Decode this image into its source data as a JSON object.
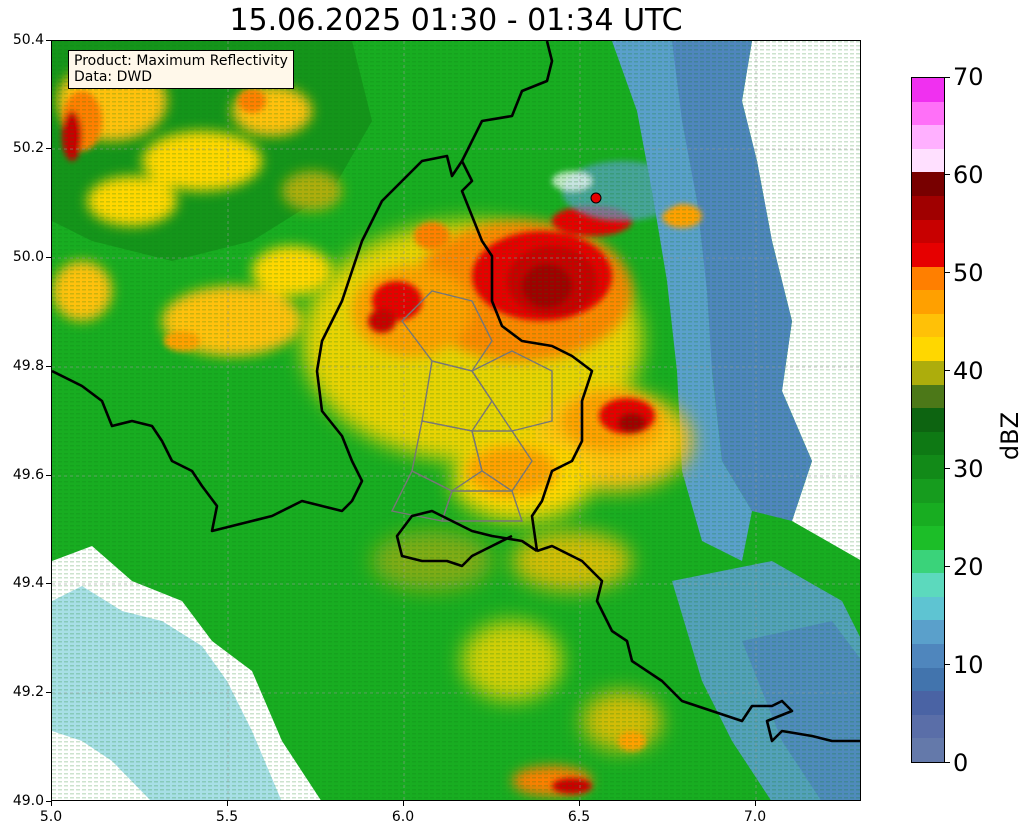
{
  "title": "15.06.2025 01:30 - 01:34 UTC",
  "info_box": {
    "product_line": "Product: Maximum Reflectivity",
    "data_line": "Data: DWD"
  },
  "axes": {
    "x_ticks": [
      "5.0",
      "5.5",
      "6.0",
      "6.5",
      "7.0"
    ],
    "y_ticks": [
      "50.4",
      "50.2",
      "50.0",
      "49.8",
      "49.6",
      "49.4",
      "49.2",
      "49.0"
    ],
    "x_range": [
      5.0,
      7.3
    ],
    "y_range": [
      49.0,
      50.4
    ],
    "grid": true
  },
  "colorbar": {
    "label": "dBZ",
    "tick_labels": [
      "0",
      "10",
      "20",
      "30",
      "40",
      "50",
      "60",
      "70"
    ],
    "range": [
      0,
      70
    ],
    "colors": [
      "#6479aa",
      "#5a6ea8",
      "#4a63a4",
      "#4274ad",
      "#4f86bd",
      "#5aa0cb",
      "#5ec4d2",
      "#5cd9bd",
      "#3ad37a",
      "#1cbe28",
      "#18ad21",
      "#169c1e",
      "#128a18",
      "#0e7914",
      "#0d6411",
      "#4c7818",
      "#adad0c",
      "#ffd700",
      "#ffc107",
      "#ffa000",
      "#ff7f00",
      "#e60000",
      "#c80000",
      "#a00000",
      "#780000",
      "#ffe0ff",
      "#ffb0ff",
      "#ff70f8",
      "#f030f0"
    ],
    "steps": 29
  },
  "map": {
    "layers": [
      "radar-reflectivity",
      "country-borders",
      "regional-borders"
    ],
    "radar_site_marker": true
  }
}
